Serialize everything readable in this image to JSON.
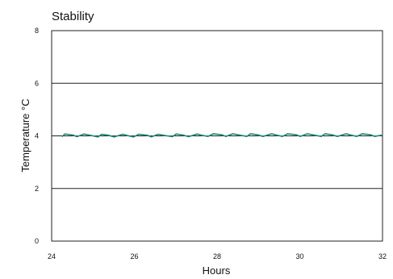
{
  "chart_data": {
    "type": "line",
    "title": "Stability",
    "xlabel": "Hours",
    "ylabel": "Temperature °C",
    "xlim": [
      24,
      32
    ],
    "ylim": [
      0,
      8
    ],
    "x_ticks": [
      "24",
      "26",
      "28",
      "30",
      "32"
    ],
    "y_ticks": [
      "0",
      "2",
      "4",
      "6",
      "8"
    ],
    "grid": "horizontal",
    "series": [
      {
        "color": "#1a8a7a",
        "x": [
          24.25,
          24.32,
          24.52,
          24.61,
          24.78,
          24.91,
          25.12,
          25.21,
          25.38,
          25.51,
          25.72,
          25.81,
          25.98,
          26.11,
          26.32,
          26.41,
          26.58,
          26.71,
          26.92,
          27.01,
          27.18,
          27.31,
          27.52,
          27.61,
          27.78,
          27.91,
          28.12,
          28.21,
          28.38,
          28.51,
          28.72,
          28.81,
          28.98,
          29.11,
          29.32,
          29.41,
          29.58,
          29.71,
          29.92,
          30.01,
          30.18,
          30.31,
          30.52,
          30.61,
          30.78,
          30.91,
          31.12,
          31.21,
          31.38,
          31.51,
          31.72,
          31.81,
          31.98
        ],
        "y": [
          3.97,
          4.07,
          4.03,
          3.97,
          4.07,
          4.03,
          3.96,
          4.06,
          4.02,
          3.96,
          4.06,
          4.02,
          3.96,
          4.06,
          4.02,
          3.96,
          4.06,
          4.02,
          3.97,
          4.07,
          4.03,
          3.97,
          4.07,
          4.03,
          3.98,
          4.08,
          4.04,
          3.98,
          4.08,
          4.04,
          3.98,
          4.08,
          4.04,
          3.98,
          4.08,
          4.04,
          3.98,
          4.08,
          4.04,
          3.98,
          4.08,
          4.04,
          3.98,
          4.08,
          4.04,
          3.98,
          4.08,
          4.04,
          3.98,
          4.08,
          4.04,
          3.98,
          4.03
        ]
      }
    ]
  }
}
